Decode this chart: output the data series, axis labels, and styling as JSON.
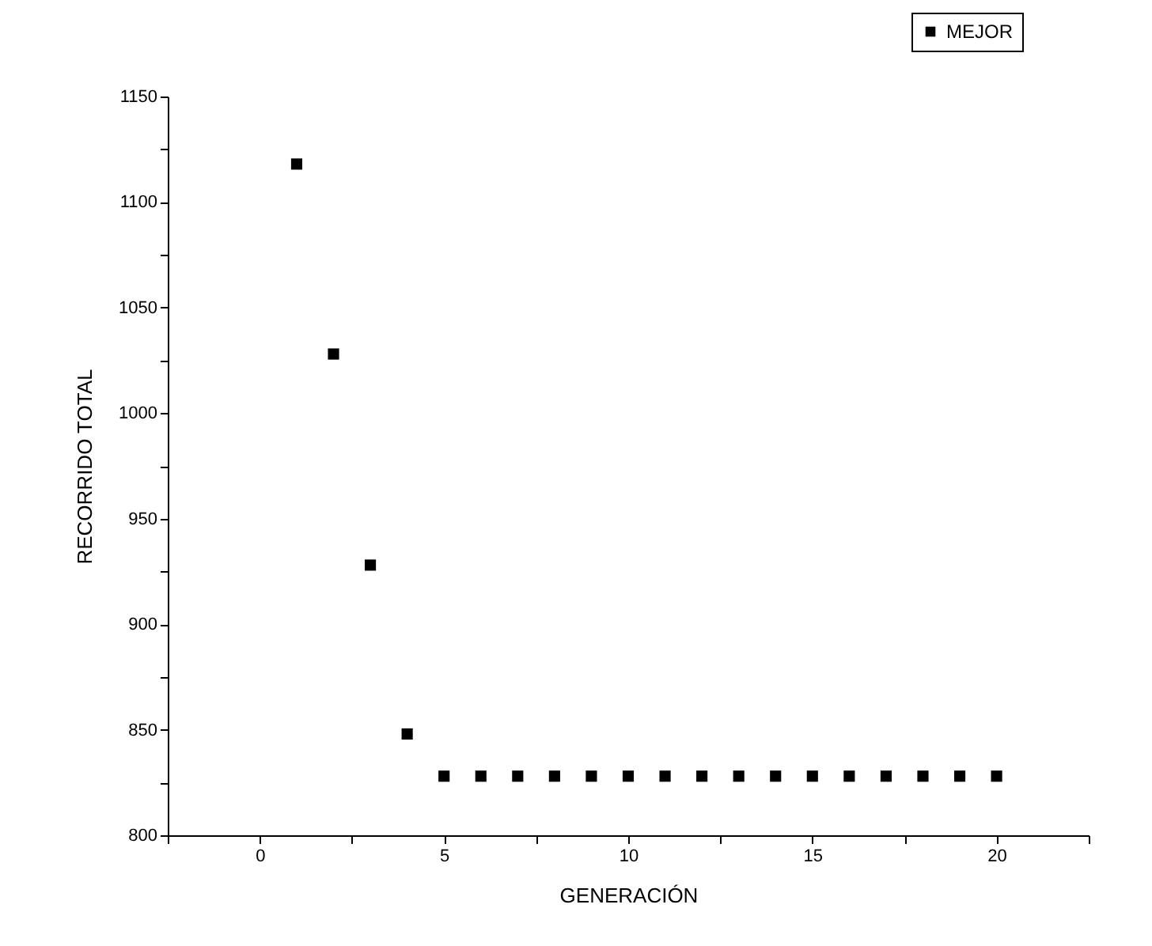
{
  "chart_data": {
    "type": "scatter",
    "xlabel": "GENERACIÓN",
    "ylabel": "RECORRIDO TOTAL",
    "x": [
      1,
      2,
      3,
      4,
      5,
      6,
      7,
      8,
      9,
      10,
      11,
      12,
      13,
      14,
      15,
      16,
      17,
      18,
      19,
      20
    ],
    "series": [
      {
        "name": "MEJOR",
        "color": "#000000",
        "values": [
          1118,
          1028,
          928,
          848,
          828,
          828,
          828,
          828,
          828,
          828,
          828,
          828,
          828,
          828,
          828,
          828,
          828,
          828,
          828,
          828
        ]
      }
    ],
    "xlim": [
      -2.5,
      22.5
    ],
    "xticks": [
      {
        "value": -2.5,
        "label": null
      },
      0,
      {
        "value": 2.5,
        "label": null
      },
      5,
      {
        "value": 7.5,
        "label": null
      },
      10,
      {
        "value": 12.5,
        "label": null
      },
      15,
      {
        "value": 17.5,
        "label": null
      },
      20,
      {
        "value": 22.5,
        "label": null
      }
    ],
    "ylim": [
      800,
      1150
    ],
    "yticks": [
      800,
      {
        "value": 825,
        "label": null
      },
      850,
      {
        "value": 875,
        "label": null
      },
      900,
      {
        "value": 925,
        "label": null
      },
      950,
      {
        "value": 975,
        "label": null
      },
      1000,
      {
        "value": 1025,
        "label": null
      },
      1050,
      {
        "value": 1075,
        "label": null
      },
      1100,
      {
        "value": 1125,
        "label": null
      },
      1150
    ],
    "marker": "square",
    "grid": false,
    "legend": "top right"
  }
}
